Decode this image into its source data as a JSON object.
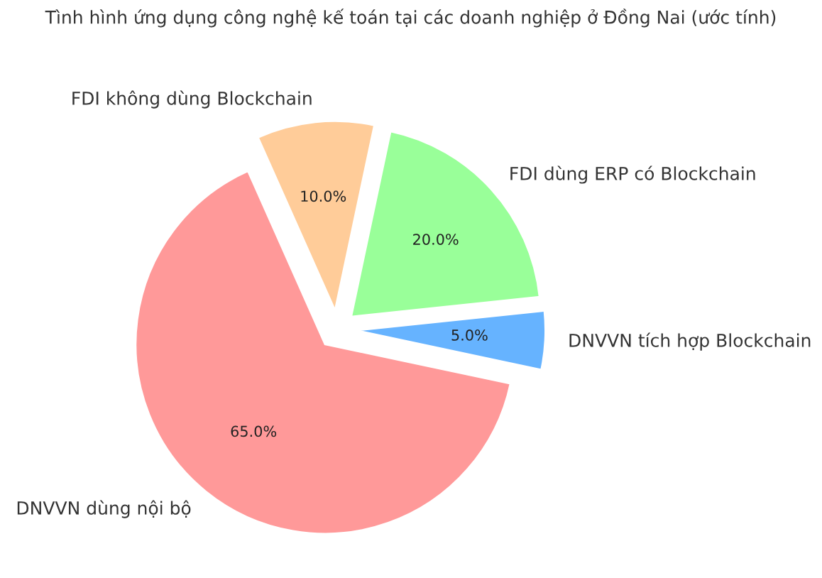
{
  "chart_data": {
    "type": "pie",
    "title": "Tình hình ứng dụng công nghệ kế toán tại các doanh nghiệp ở Đồng Nai (ước tính)",
    "categories": [
      "DNVVN tích hợp Blockchain",
      "FDI dùng ERP có Blockchain",
      "FDI không dùng Blockchain",
      "DNVVN dùng nội bộ"
    ],
    "values": [
      5,
      20,
      10,
      65
    ],
    "colors": [
      "#66b3ff",
      "#99ff99",
      "#ffcc99",
      "#ff9999"
    ],
    "value_labels": [
      "5.0%",
      "20.0%",
      "10.0%",
      "65.0%"
    ],
    "legend": false
  }
}
